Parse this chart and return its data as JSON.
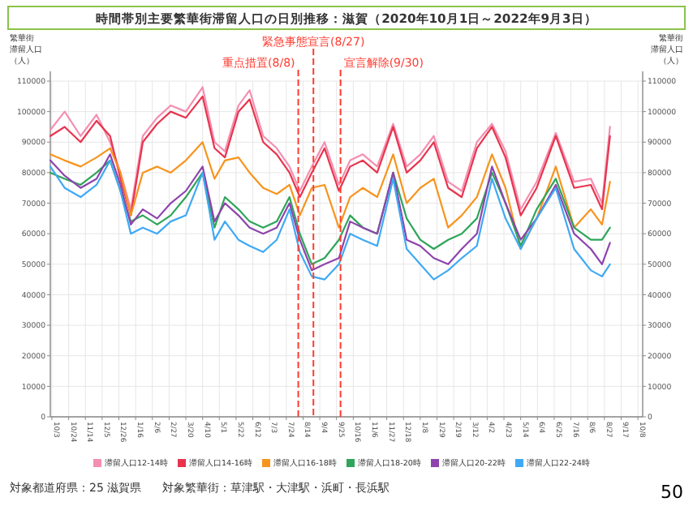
{
  "chart_data": {
    "type": "line",
    "title": "時間帯別主要繁華街滞留人口の日別推移：滋賀（2020年10月1日～2022年9月3日）",
    "ylabel": "繁華街滞留人口（人）",
    "y2label": "繁華街滞留人口（人）",
    "x": [
      "2020-10-01",
      "2020-10-19",
      "2020-11-08",
      "2020-11-28",
      "2020-12-15",
      "2020-12-28",
      "2021-01-10",
      "2021-01-25",
      "2021-02-12",
      "2021-03-01",
      "2021-03-20",
      "2021-04-10",
      "2021-04-25",
      "2021-05-08",
      "2021-05-25",
      "2021-06-08",
      "2021-06-25",
      "2021-07-12",
      "2021-07-28",
      "2021-08-10",
      "2021-08-25",
      "2021-09-10",
      "2021-09-28",
      "2021-10-12",
      "2021-10-28",
      "2021-11-15",
      "2021-12-05",
      "2021-12-22",
      "2022-01-08",
      "2022-01-25",
      "2022-02-12",
      "2022-03-01",
      "2022-03-20",
      "2022-04-08",
      "2022-04-25",
      "2022-05-14",
      "2022-06-03",
      "2022-06-27",
      "2022-07-20",
      "2022-08-10",
      "2022-08-24",
      "2022-09-03"
    ],
    "series": [
      {
        "name": "滞留人口12-14時",
        "color": "#f48fb1",
        "values": [
          94000,
          100000,
          92000,
          99000,
          90000,
          80000,
          68000,
          92000,
          98000,
          102000,
          100000,
          108000,
          90000,
          87000,
          102000,
          107000,
          92000,
          88000,
          82000,
          74000,
          82000,
          90000,
          76000,
          84000,
          86000,
          82000,
          96000,
          82000,
          86000,
          92000,
          77000,
          74000,
          90000,
          96000,
          87000,
          68000,
          77000,
          93000,
          77000,
          78000,
          70000,
          95000
        ]
      },
      {
        "name": "滞留人口14-16時",
        "color": "#e8344e",
        "values": [
          92000,
          95000,
          90000,
          97000,
          92000,
          78000,
          66000,
          90000,
          96000,
          100000,
          98000,
          105000,
          88000,
          85000,
          100000,
          104000,
          90000,
          86000,
          80000,
          72000,
          80000,
          88000,
          74000,
          82000,
          84000,
          80000,
          95000,
          80000,
          84000,
          90000,
          75000,
          72000,
          88000,
          95000,
          85000,
          66000,
          75000,
          92000,
          75000,
          76000,
          68000,
          92000
        ]
      },
      {
        "name": "滞留人口16-18時",
        "color": "#f7941d",
        "values": [
          86000,
          84000,
          82000,
          85000,
          88000,
          80000,
          66000,
          80000,
          82000,
          80000,
          84000,
          90000,
          78000,
          84000,
          85000,
          80000,
          75000,
          73000,
          76000,
          66000,
          75000,
          76000,
          62000,
          72000,
          75000,
          72000,
          86000,
          70000,
          75000,
          78000,
          62000,
          66000,
          72000,
          86000,
          75000,
          55000,
          65000,
          82000,
          62000,
          68000,
          63000,
          77000
        ]
      },
      {
        "name": "滞留人口18-20時",
        "color": "#2ea55a",
        "values": [
          80000,
          78000,
          76000,
          80000,
          84000,
          74000,
          64000,
          66000,
          63000,
          66000,
          72000,
          80000,
          62000,
          72000,
          68000,
          64000,
          62000,
          64000,
          72000,
          60000,
          50000,
          52000,
          58000,
          66000,
          62000,
          60000,
          80000,
          65000,
          58000,
          55000,
          58000,
          60000,
          65000,
          80000,
          70000,
          56000,
          68000,
          78000,
          62000,
          58000,
          58000,
          62000
        ]
      },
      {
        "name": "滞留人口20-22時",
        "color": "#8e44ad",
        "values": [
          84000,
          79000,
          75000,
          78000,
          86000,
          76000,
          63000,
          68000,
          65000,
          70000,
          74000,
          82000,
          64000,
          70000,
          66000,
          62000,
          60000,
          62000,
          70000,
          58000,
          48000,
          50000,
          52000,
          64000,
          62000,
          60000,
          80000,
          58000,
          56000,
          52000,
          50000,
          55000,
          60000,
          82000,
          70000,
          58000,
          65000,
          76000,
          60000,
          55000,
          50000,
          57000
        ]
      },
      {
        "name": "滞留人口22-24時",
        "color": "#3fa9f5",
        "values": [
          82000,
          75000,
          72000,
          76000,
          84000,
          74000,
          60000,
          62000,
          60000,
          64000,
          66000,
          80000,
          58000,
          64000,
          58000,
          56000,
          54000,
          58000,
          68000,
          54000,
          46000,
          45000,
          50000,
          60000,
          58000,
          56000,
          78000,
          55000,
          50000,
          45000,
          48000,
          52000,
          56000,
          78000,
          65000,
          55000,
          65000,
          75000,
          55000,
          48000,
          46000,
          50000
        ]
      }
    ],
    "xlim": [
      "2020-10-01",
      "2022-10-14"
    ],
    "xticks": [
      {
        "value": "2020-10-03",
        "label": "10/3"
      },
      {
        "value": "2020-10-24",
        "label": "10/24"
      },
      {
        "value": "2020-11-14",
        "label": "11/14"
      },
      {
        "value": "2020-12-05",
        "label": "12/5"
      },
      {
        "value": "2020-12-26",
        "label": "12/26"
      },
      {
        "value": "2021-01-16",
        "label": "1/16"
      },
      {
        "value": "2021-02-06",
        "label": "2/6"
      },
      {
        "value": "2021-02-27",
        "label": "2/27"
      },
      {
        "value": "2021-03-20",
        "label": "3/20"
      },
      {
        "value": "2021-04-10",
        "label": "4/10"
      },
      {
        "value": "2021-05-01",
        "label": "5/1"
      },
      {
        "value": "2021-05-22",
        "label": "5/22"
      },
      {
        "value": "2021-06-12",
        "label": "6/12"
      },
      {
        "value": "2021-07-03",
        "label": "7/3"
      },
      {
        "value": "2021-07-24",
        "label": "7/24"
      },
      {
        "value": "2021-08-14",
        "label": "8/14"
      },
      {
        "value": "2021-09-04",
        "label": "9/4"
      },
      {
        "value": "2021-09-25",
        "label": "9/25"
      },
      {
        "value": "2021-10-16",
        "label": "10/16"
      },
      {
        "value": "2021-11-06",
        "label": "11/6"
      },
      {
        "value": "2021-11-27",
        "label": "11/27"
      },
      {
        "value": "2021-12-18",
        "label": "12/18"
      },
      {
        "value": "2022-01-08",
        "label": "1/8"
      },
      {
        "value": "2022-01-29",
        "label": "1/29"
      },
      {
        "value": "2022-02-19",
        "label": "2/19"
      },
      {
        "value": "2022-03-12",
        "label": "3/12"
      },
      {
        "value": "2022-04-02",
        "label": "4/2"
      },
      {
        "value": "2022-04-23",
        "label": "4/23"
      },
      {
        "value": "2022-05-14",
        "label": "5/14"
      },
      {
        "value": "2022-06-04",
        "label": "6/4"
      },
      {
        "value": "2022-06-25",
        "label": "6/25"
      },
      {
        "value": "2022-07-16",
        "label": "7/16"
      },
      {
        "value": "2022-08-06",
        "label": "8/6"
      },
      {
        "value": "2022-08-27",
        "label": "8/27"
      },
      {
        "value": "2022-09-17",
        "label": "9/17"
      },
      {
        "value": "2022-10-08",
        "label": "10/8"
      }
    ],
    "ylim": [
      0,
      110000
    ],
    "yticks": [
      0,
      10000,
      20000,
      30000,
      40000,
      50000,
      60000,
      70000,
      80000,
      90000,
      100000,
      110000
    ],
    "y2lim": [
      0,
      110000
    ],
    "y2ticks": [
      0,
      10000,
      20000,
      30000,
      40000,
      50000,
      60000,
      70000,
      80000,
      90000,
      100000,
      110000
    ],
    "ref_lines": [
      {
        "axis": "x",
        "value": "2021-08-08",
        "label": "重点措置(8/8)",
        "color": "#ff3b30",
        "line_style": "dashed"
      },
      {
        "axis": "x",
        "value": "2021-08-27",
        "label": "緊急事態宣言(8/27)",
        "color": "#ff3b30",
        "line_style": "dashed"
      },
      {
        "axis": "x",
        "value": "2021-09-30",
        "label": "宣言解除(9/30)",
        "color": "#ff3b30",
        "line_style": "dashed"
      }
    ],
    "grid": true,
    "legend": "bottom",
    "marker": "none",
    "line_style": "solid",
    "annotations": [
      "対象都道府県：25 滋賀県",
      "対象繁華街：草津駅・大津駅・浜町・長浜駅",
      "50"
    ]
  }
}
